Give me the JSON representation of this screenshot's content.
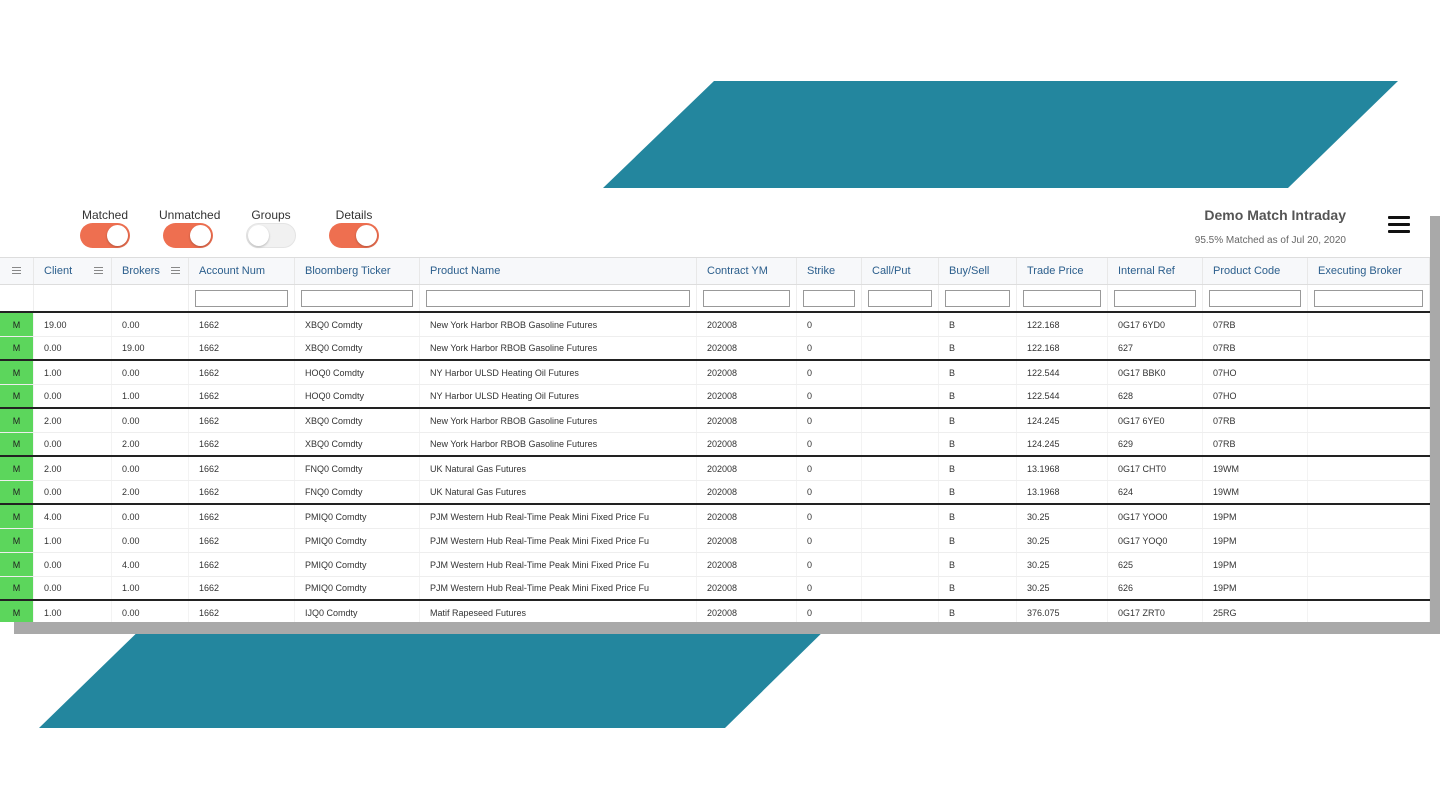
{
  "colors": {
    "accent_teal": "#23869e",
    "toggle_on": "#ee6f50",
    "matched_status": "#5cd65c",
    "header_text": "#2b5e8c"
  },
  "header": {
    "toggles": [
      {
        "label": "Matched",
        "on": true
      },
      {
        "label": "Unmatched",
        "on": true
      },
      {
        "label": "Groups",
        "on": false
      },
      {
        "label": "Details",
        "on": true
      }
    ],
    "title": "Demo Match Intraday",
    "subtitle": "95.5% Matched as of Jul 20, 2020",
    "menu_icon": "hamburger-menu-icon"
  },
  "grid": {
    "columns": [
      "",
      "Client",
      "Brokers",
      "Account Num",
      "Bloomberg Ticker",
      "Product Name",
      "Contract YM",
      "Strike",
      "Call/Put",
      "Buy/Sell",
      "Trade Price",
      "Internal Ref",
      "Product Code",
      "Executing Broker"
    ],
    "rows": [
      {
        "status": "M",
        "client": "19.00",
        "brokers": "0.00",
        "account": "1662",
        "ticker": "XBQ0 Comdty",
        "product": "New York Harbor RBOB Gasoline Futures",
        "contract": "202008",
        "strike": "0",
        "callput": "",
        "buysell": "B",
        "price": "122.168",
        "ref": "0G17 6YD0",
        "code": "07RB",
        "broker": "",
        "group_end": false
      },
      {
        "status": "M",
        "client": "0.00",
        "brokers": "19.00",
        "account": "1662",
        "ticker": "XBQ0 Comdty",
        "product": "New York Harbor RBOB Gasoline Futures",
        "contract": "202008",
        "strike": "0",
        "callput": "",
        "buysell": "B",
        "price": "122.168",
        "ref": "627",
        "code": "07RB",
        "broker": "",
        "group_end": true
      },
      {
        "status": "M",
        "client": "1.00",
        "brokers": "0.00",
        "account": "1662",
        "ticker": "HOQ0 Comdty",
        "product": "NY Harbor ULSD Heating Oil Futures",
        "contract": "202008",
        "strike": "0",
        "callput": "",
        "buysell": "B",
        "price": "122.544",
        "ref": "0G17 BBK0",
        "code": "07HO",
        "broker": "",
        "group_end": false
      },
      {
        "status": "M",
        "client": "0.00",
        "brokers": "1.00",
        "account": "1662",
        "ticker": "HOQ0 Comdty",
        "product": "NY Harbor ULSD Heating Oil Futures",
        "contract": "202008",
        "strike": "0",
        "callput": "",
        "buysell": "B",
        "price": "122.544",
        "ref": "628",
        "code": "07HO",
        "broker": "",
        "group_end": true
      },
      {
        "status": "M",
        "client": "2.00",
        "brokers": "0.00",
        "account": "1662",
        "ticker": "XBQ0 Comdty",
        "product": "New York Harbor RBOB Gasoline Futures",
        "contract": "202008",
        "strike": "0",
        "callput": "",
        "buysell": "B",
        "price": "124.245",
        "ref": "0G17 6YE0",
        "code": "07RB",
        "broker": "",
        "group_end": false
      },
      {
        "status": "M",
        "client": "0.00",
        "brokers": "2.00",
        "account": "1662",
        "ticker": "XBQ0 Comdty",
        "product": "New York Harbor RBOB Gasoline Futures",
        "contract": "202008",
        "strike": "0",
        "callput": "",
        "buysell": "B",
        "price": "124.245",
        "ref": "629",
        "code": "07RB",
        "broker": "",
        "group_end": true
      },
      {
        "status": "M",
        "client": "2.00",
        "brokers": "0.00",
        "account": "1662",
        "ticker": "FNQ0 Comdty",
        "product": "UK Natural Gas Futures",
        "contract": "202008",
        "strike": "0",
        "callput": "",
        "buysell": "B",
        "price": "13.1968",
        "ref": "0G17 CHT0",
        "code": "19WM",
        "broker": "",
        "group_end": false
      },
      {
        "status": "M",
        "client": "0.00",
        "brokers": "2.00",
        "account": "1662",
        "ticker": "FNQ0 Comdty",
        "product": "UK Natural Gas Futures",
        "contract": "202008",
        "strike": "0",
        "callput": "",
        "buysell": "B",
        "price": "13.1968",
        "ref": "624",
        "code": "19WM",
        "broker": "",
        "group_end": true
      },
      {
        "status": "M",
        "client": "4.00",
        "brokers": "0.00",
        "account": "1662",
        "ticker": "PMIQ0 Comdty",
        "product": "PJM Western Hub Real-Time Peak Mini Fixed Price Fu",
        "contract": "202008",
        "strike": "0",
        "callput": "",
        "buysell": "B",
        "price": "30.25",
        "ref": "0G17 YOO0",
        "code": "19PM",
        "broker": "",
        "group_end": false
      },
      {
        "status": "M",
        "client": "1.00",
        "brokers": "0.00",
        "account": "1662",
        "ticker": "PMIQ0 Comdty",
        "product": "PJM Western Hub Real-Time Peak Mini Fixed Price Fu",
        "contract": "202008",
        "strike": "0",
        "callput": "",
        "buysell": "B",
        "price": "30.25",
        "ref": "0G17 YOQ0",
        "code": "19PM",
        "broker": "",
        "group_end": false
      },
      {
        "status": "M",
        "client": "0.00",
        "brokers": "4.00",
        "account": "1662",
        "ticker": "PMIQ0 Comdty",
        "product": "PJM Western Hub Real-Time Peak Mini Fixed Price Fu",
        "contract": "202008",
        "strike": "0",
        "callput": "",
        "buysell": "B",
        "price": "30.25",
        "ref": "625",
        "code": "19PM",
        "broker": "",
        "group_end": false
      },
      {
        "status": "M",
        "client": "0.00",
        "brokers": "1.00",
        "account": "1662",
        "ticker": "PMIQ0 Comdty",
        "product": "PJM Western Hub Real-Time Peak Mini Fixed Price Fu",
        "contract": "202008",
        "strike": "0",
        "callput": "",
        "buysell": "B",
        "price": "30.25",
        "ref": "626",
        "code": "19PM",
        "broker": "",
        "group_end": true
      },
      {
        "status": "M",
        "client": "1.00",
        "brokers": "0.00",
        "account": "1662",
        "ticker": "IJQ0 Comdty",
        "product": "Matif Rapeseed Futures",
        "contract": "202008",
        "strike": "0",
        "callput": "",
        "buysell": "B",
        "price": "376.075",
        "ref": "0G17 ZRT0",
        "code": "25RG",
        "broker": "",
        "group_end": false
      }
    ]
  }
}
